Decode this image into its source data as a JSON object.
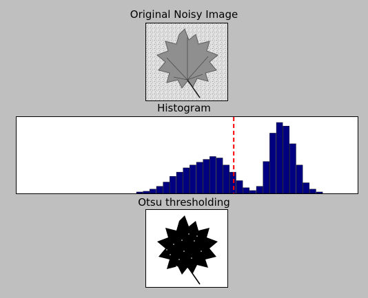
{
  "titles": {
    "top": "Original Noisy Image",
    "middle": "Histogram",
    "bottom": "Otsu thresholding"
  },
  "chart_data": [
    {
      "type": "image",
      "title": "Original Noisy Image",
      "description": "grayscale leaf on noisy light background"
    },
    {
      "type": "bar",
      "title": "Histogram",
      "xlim": [
        0,
        256
      ],
      "threshold": 163,
      "threshold_color": "#ff0000",
      "bar_color": "#000080",
      "bins": [
        90,
        95,
        100,
        105,
        110,
        115,
        120,
        125,
        130,
        135,
        140,
        145,
        150,
        155,
        160,
        165,
        170,
        175,
        180,
        185,
        190,
        195,
        200,
        205,
        210,
        215,
        220,
        225
      ],
      "counts": [
        2,
        3,
        6,
        10,
        16,
        24,
        30,
        36,
        40,
        44,
        48,
        52,
        50,
        40,
        30,
        18,
        8,
        4,
        10,
        45,
        85,
        100,
        95,
        70,
        40,
        15,
        6,
        2
      ]
    },
    {
      "type": "image",
      "title": "Otsu thresholding",
      "description": "binary black leaf silhouette on white background"
    }
  ],
  "colors": {
    "background": "#bfbfbf",
    "bars": "#000080",
    "threshold_line": "#ff0000"
  }
}
